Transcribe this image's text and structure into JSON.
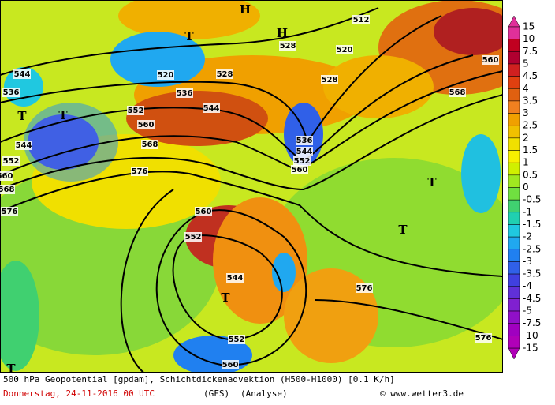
{
  "map": {
    "contour_labels": [
      "512",
      "520",
      "528",
      "536",
      "544",
      "552",
      "560",
      "552",
      "560",
      "568",
      "576",
      "544",
      "536",
      "544",
      "552",
      "560",
      "568",
      "576",
      "560",
      "552",
      "544",
      "552",
      "560",
      "576",
      "576",
      "568",
      "560",
      "528",
      "520",
      "536",
      "544",
      "528"
    ],
    "pressure_centers": [
      "H",
      "H",
      "T",
      "T",
      "T",
      "T",
      "T",
      "T",
      "T"
    ]
  },
  "legend": {
    "labels": [
      "15",
      "10",
      "7.5",
      "5",
      "4.5",
      "4",
      "3.5",
      "3",
      "2.5",
      "2",
      "1.5",
      "1",
      "0.5",
      "0",
      "-0.5",
      "-1",
      "-1.5",
      "-2",
      "-2.5",
      "-3",
      "-3.5",
      "-4",
      "-4.5",
      "-5",
      "-7.5",
      "-10",
      "-15"
    ],
    "colors": [
      "#e0309a",
      "#c00020",
      "#b00030",
      "#d02020",
      "#e04010",
      "#e06010",
      "#f08020",
      "#f0a000",
      "#f0c000",
      "#f0e000",
      "#f8f000",
      "#d0f000",
      "#a0e820",
      "#70e040",
      "#40d070",
      "#20d0b0",
      "#20c8e0",
      "#20a8f0",
      "#2080f0",
      "#3060e8",
      "#4040e0",
      "#6030d8",
      "#8020d0",
      "#9010c8",
      "#a000c0",
      "#b000b8"
    ]
  },
  "footer": {
    "title": "500 hPa Geopotential [gpdam], Schichtdickenadvektion (H500-H1000) [0.1 K/h]",
    "date": "Donnerstag, 24-11-2016  00 UTC",
    "model": "(GFS)",
    "run": "(Analyse)",
    "credit": "© www.wetter3.de"
  }
}
